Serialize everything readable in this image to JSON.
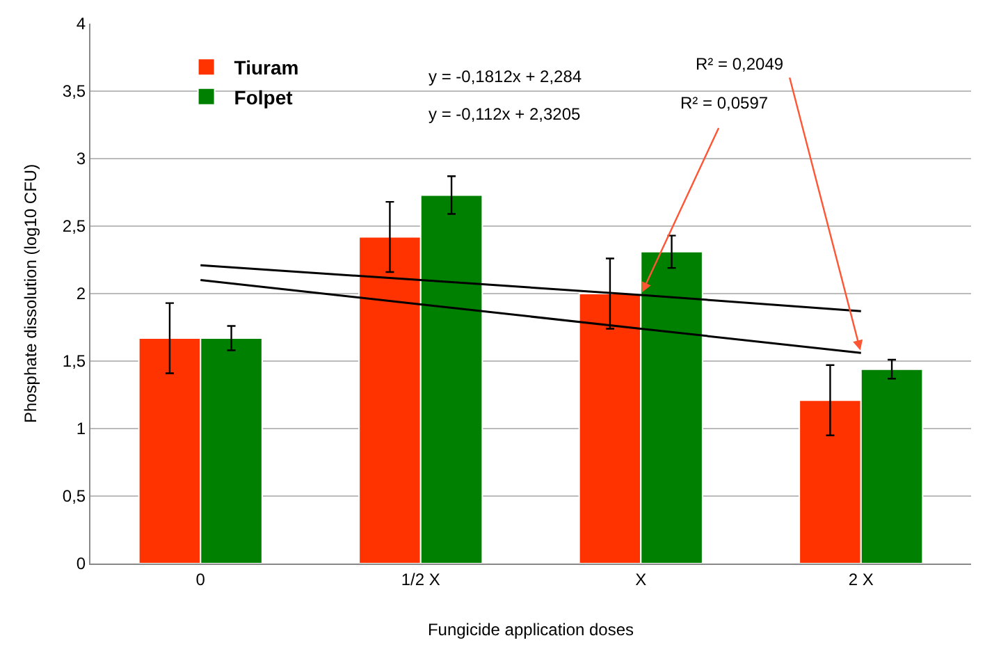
{
  "chart_data": {
    "type": "bar",
    "xlabel": "Fungicide application doses",
    "ylabel": "Phosphate dissolution (log10 CFU)",
    "categories": [
      "0",
      "1/2 X",
      "X",
      "2 X"
    ],
    "series": [
      {
        "name": "Tiuram",
        "color": "#ff3300",
        "values": [
          1.67,
          2.42,
          2.0,
          1.21
        ],
        "errors": [
          0.26,
          0.26,
          0.26,
          0.26
        ]
      },
      {
        "name": "Folpet",
        "color": "#008000",
        "values": [
          1.67,
          2.73,
          2.31,
          1.44
        ],
        "errors": [
          0.09,
          0.14,
          0.12,
          0.07
        ]
      },
      {
        "type": "line",
        "color": "#000000",
        "x": [
          "0",
          "1/2 X",
          "X",
          "2 X"
        ],
        "values": [
          2.1,
          1.92,
          1.74,
          1.56
        ]
      },
      {
        "type": "line",
        "color": "#000000",
        "x": [
          "0",
          "1/2 X",
          "X",
          "2 X"
        ],
        "values": [
          2.21,
          2.1,
          1.99,
          1.87
        ]
      }
    ],
    "annotations": [
      "y = -0,1812x + 2,284",
      "y = -0,112x + 2,3205",
      {
        "text": "R² = 0,2049",
        "x": "2 X",
        "y": 1.56
      },
      {
        "text": "R² = 0,0597",
        "x": "X",
        "y": 1.99
      }
    ],
    "ylim": [
      0,
      4
    ],
    "yticks": [
      0,
      {
        "value": 0.5,
        "label": "0,5"
      },
      1,
      {
        "value": 1.5,
        "label": "1,5"
      },
      2,
      {
        "value": 2.5,
        "label": "2,5"
      },
      3,
      {
        "value": 3.5,
        "label": "3,5"
      },
      4
    ],
    "grid": "y",
    "legend": "top left"
  }
}
